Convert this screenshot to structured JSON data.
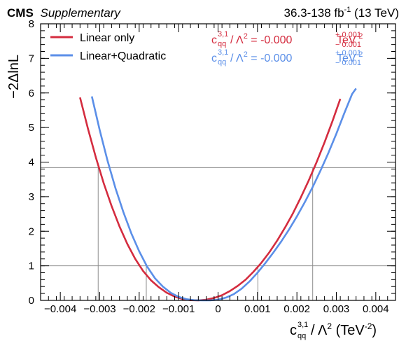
{
  "header": {
    "experiment": "CMS",
    "status": "Supplementary",
    "lumi": "36.3-138 fb",
    "lumi_exp": "-1",
    "energy": " (13 TeV)"
  },
  "colors": {
    "linear": "#d42c3f",
    "quadratic": "#5b8fe8",
    "ref": "#8c8c8c"
  },
  "results": [
    {
      "series": "Linear only",
      "coef_base": "c",
      "coef_sup": "3,1",
      "coef_sub": "qq",
      "mid": " / Λ",
      "mid_exp": "2",
      "value": " = -0.000",
      "up": "+ 0.001",
      "down": "− 0.001",
      "unit": "TeV",
      "unit_exp": "-2"
    },
    {
      "series": "Linear+Quadratic",
      "coef_base": "c",
      "coef_sup": "3,1",
      "coef_sub": "qq",
      "mid": " / Λ",
      "mid_exp": "2",
      "value": " = -0.000",
      "up": "+ 0.001",
      "down": "− 0.001",
      "unit": "TeV",
      "unit_exp": "-2"
    }
  ],
  "chart_data": {
    "type": "line",
    "xlabel": {
      "base": "c",
      "sup": "3,1",
      "sub": "qq",
      "mid": " / Λ",
      "mid_exp": "2",
      "unit": " (TeV",
      "unit_exp": "-2",
      "close": ")"
    },
    "ylabel": "−2ΔlnL",
    "xlim": [
      -0.0045,
      0.0045
    ],
    "ylim": [
      0,
      8
    ],
    "x_ticks": [
      -0.004,
      -0.003,
      -0.002,
      -0.001,
      0,
      0.001,
      0.002,
      0.003,
      0.004
    ],
    "x_tick_labels": [
      "−0.004",
      "−0.003",
      "−0.002",
      "−0.001",
      "0",
      "0.001",
      "0.002",
      "0.003",
      "0.004"
    ],
    "y_ticks": [
      0,
      1,
      2,
      3,
      4,
      5,
      6,
      7,
      8
    ],
    "y_tick_labels": [
      "0",
      "1",
      "2",
      "3",
      "4",
      "5",
      "6",
      "7",
      "8"
    ],
    "ref_lines_y": [
      1,
      3.84
    ],
    "legend_position": "top-left",
    "series": [
      {
        "name": "Linear only",
        "color": "#d42c3f",
        "x": [
          -0.0035,
          -0.0033,
          -0.0031,
          -0.0029,
          -0.0027,
          -0.0025,
          -0.0023,
          -0.0021,
          -0.0019,
          -0.0017,
          -0.0015,
          -0.0013,
          -0.0011,
          -0.0009,
          -0.0007,
          -0.0005,
          -0.0003,
          -0.0001,
          0.0001,
          0.0003,
          0.0005,
          0.0007,
          0.0009,
          0.0011,
          0.0013,
          0.0015,
          0.0017,
          0.0019,
          0.0021,
          0.0023,
          0.0025,
          0.0027,
          0.0029,
          0.0031
        ],
        "y": [
          5.87,
          4.97,
          4.14,
          3.39,
          2.73,
          2.14,
          1.63,
          1.2,
          0.85,
          0.58,
          0.38,
          0.22,
          0.11,
          0.04,
          0.005,
          0.0,
          0.02,
          0.07,
          0.15,
          0.27,
          0.42,
          0.6,
          0.83,
          1.09,
          1.39,
          1.73,
          2.11,
          2.52,
          2.98,
          3.47,
          4.0,
          4.57,
          5.18,
          5.83
        ]
      },
      {
        "name": "Linear+Quadratic",
        "color": "#5b8fe8",
        "x": [
          -0.0032,
          -0.003,
          -0.0028,
          -0.0026,
          -0.0024,
          -0.0022,
          -0.002,
          -0.0018,
          -0.0016,
          -0.0014,
          -0.0012,
          -0.001,
          -0.0008,
          -0.0006,
          -0.0004,
          -0.0002,
          0.0,
          0.0002,
          0.0004,
          0.0006,
          0.0008,
          0.001,
          0.0012,
          0.0014,
          0.0016,
          0.0018,
          0.002,
          0.0022,
          0.0024,
          0.0026,
          0.0028,
          0.003,
          0.0032,
          0.0034,
          0.0035
        ],
        "y": [
          5.9,
          4.92,
          4.03,
          3.24,
          2.55,
          1.94,
          1.42,
          0.98,
          0.64,
          0.4,
          0.22,
          0.1,
          0.035,
          0.005,
          0.0,
          0.0,
          0.02,
          0.08,
          0.18,
          0.34,
          0.55,
          0.8,
          1.08,
          1.38,
          1.7,
          2.05,
          2.43,
          2.84,
          3.28,
          3.76,
          4.27,
          4.82,
          5.41,
          5.97,
          6.13
        ]
      }
    ],
    "crossings": [
      {
        "x": -0.00304,
        "y": 3.84
      },
      {
        "x": 0.0024,
        "y": 3.84
      },
      {
        "x": -0.00182,
        "y": 1
      },
      {
        "x": 0.00101,
        "y": 1
      }
    ]
  }
}
